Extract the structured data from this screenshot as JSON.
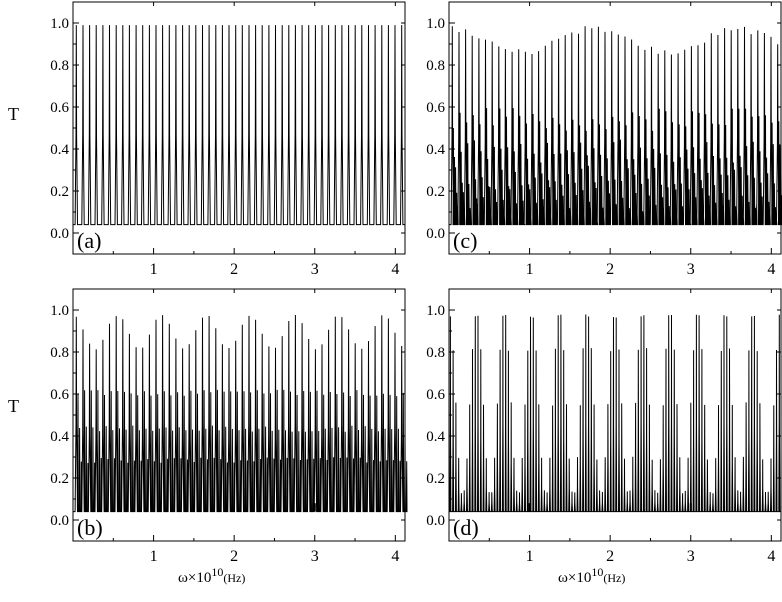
{
  "y_axis_label": "T",
  "x_axis_label": {
    "base": "ω×10",
    "exponent": "10",
    "unit": "(Hz)"
  },
  "chart_data": [
    {
      "type": "line",
      "panel": "(a)",
      "xlim": [
        0.0,
        4.12
      ],
      "ylim": [
        -0.1,
        1.1
      ],
      "xticks": [
        "1",
        "2",
        "3",
        "4"
      ],
      "yticks": [
        "0.0",
        "0.2",
        "0.4",
        "0.6",
        "0.8",
        "1.0"
      ],
      "ylabel": "T",
      "series": [
        {
          "peak_count": 50,
          "period": 0.0824,
          "min": 0.04,
          "peak_max": 0.99,
          "beat_period": 0.0,
          "beat_min": 0.96,
          "sub_levels": [],
          "noise": 0.0,
          "dip_at": []
        }
      ]
    },
    {
      "type": "line",
      "panel": "(c)",
      "xlim": [
        0.0,
        4.12
      ],
      "ylim": [
        -0.1,
        1.1
      ],
      "xticks": [
        "1",
        "2",
        "3",
        "4"
      ],
      "yticks": [
        "0.0",
        "0.2",
        "0.4",
        "0.6",
        "0.8",
        "1.0"
      ],
      "series": [
        {
          "peak_count": 50,
          "period": 0.0824,
          "min": 0.04,
          "peak_max": 0.99,
          "beat_period": 1.8,
          "beat_min": 0.88,
          "sub_levels": [
            0.6,
            0.45,
            0.32,
            0.22,
            0.14
          ],
          "noise": 0.12,
          "dip_at": []
        }
      ]
    },
    {
      "type": "line",
      "panel": "(b)",
      "xlim": [
        0.0,
        4.12
      ],
      "ylim": [
        -0.1,
        1.1
      ],
      "xticks": [
        "1",
        "2",
        "3",
        "4"
      ],
      "yticks": [
        "0.0",
        "0.2",
        "0.4",
        "0.6",
        "0.8",
        "1.0"
      ],
      "xlabel": "ω×10^10(Hz)",
      "ylabel": "T",
      "series": [
        {
          "peak_count": 50,
          "period": 0.0824,
          "min": 0.04,
          "peak_max": 0.98,
          "beat_period": 0.55,
          "beat_min": 0.82,
          "sub_levels": [
            0.62,
            0.45,
            0.3
          ],
          "noise": 0.03,
          "dip_at": [
            3.0
          ]
        }
      ]
    },
    {
      "type": "line",
      "panel": "(d)",
      "xlim": [
        0.0,
        4.12
      ],
      "ylim": [
        -0.1,
        1.1
      ],
      "xticks": [
        "1",
        "2",
        "3",
        "4"
      ],
      "yticks": [
        "0.0",
        "0.2",
        "0.4",
        "0.6",
        "0.8",
        "1.0"
      ],
      "xlabel": "ω×10^10(Hz)",
      "series": [
        {
          "peak_count": 120,
          "period": 0.0343,
          "min": 0.04,
          "peak_max": 1.0,
          "beat_period": 0.343,
          "beat_min": 0.12,
          "sub_levels": [],
          "noise": 0.05,
          "dip_at": [
            1.0,
            3.0
          ]
        }
      ]
    }
  ]
}
